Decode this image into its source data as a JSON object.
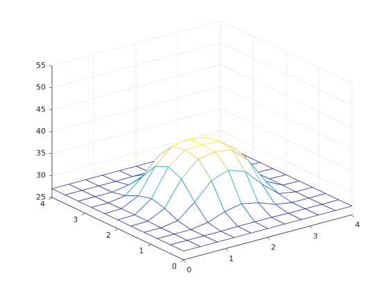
{
  "chart_data": {
    "type": "mesh",
    "colormap": "parula",
    "grid": true,
    "x": [
      0,
      0.4,
      0.8,
      1.2,
      1.6,
      2,
      2.4,
      2.8,
      3.2,
      3.6,
      4
    ],
    "y": [
      0,
      0.4,
      0.8,
      1.2,
      1.6,
      2,
      2.4,
      2.8,
      3.2,
      3.6,
      4
    ],
    "z": [
      [
        27,
        27,
        27,
        27,
        27,
        27,
        27,
        27,
        27,
        27,
        27
      ],
      [
        27,
        27,
        27,
        27,
        27.1,
        27.1,
        27.1,
        27,
        27,
        27,
        27
      ],
      [
        27,
        27,
        27,
        27.6,
        29,
        29.8,
        29,
        27.6,
        27,
        27,
        27
      ],
      [
        27,
        27,
        27.6,
        30.8,
        34.7,
        36,
        34.7,
        30.8,
        27.6,
        27,
        27
      ],
      [
        27,
        27.1,
        29,
        34.7,
        38.2,
        38.8,
        38.2,
        34.7,
        29,
        27.1,
        27
      ],
      [
        27,
        27.1,
        29.8,
        36,
        38.8,
        39,
        38.8,
        36,
        29.8,
        27.1,
        27
      ],
      [
        27,
        27.1,
        29,
        34.7,
        38.2,
        38.8,
        38.2,
        34.7,
        29,
        27.1,
        27
      ],
      [
        27,
        27,
        27.6,
        30.8,
        34.7,
        36,
        34.7,
        30.8,
        27.6,
        27,
        27
      ],
      [
        27,
        27,
        27,
        27.6,
        29,
        29.8,
        29,
        27.6,
        27,
        27,
        27
      ],
      [
        27,
        27,
        27,
        27,
        27.1,
        27.1,
        27.1,
        27,
        27,
        27,
        27
      ],
      [
        27,
        27,
        27,
        27,
        27,
        27,
        27,
        27,
        27,
        27,
        27
      ]
    ],
    "xlim": [
      0,
      4
    ],
    "ylim": [
      0,
      4
    ],
    "zlim": [
      25,
      55
    ],
    "xticks": [
      0,
      1,
      2,
      3,
      4
    ],
    "yticks": [
      0,
      1,
      2,
      3,
      4
    ],
    "zticks": [
      25,
      30,
      35,
      40,
      45,
      50,
      55
    ]
  }
}
